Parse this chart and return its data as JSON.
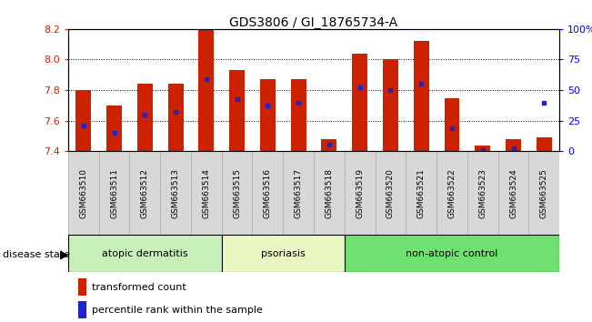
{
  "title": "GDS3806 / GI_18765734-A",
  "samples": [
    "GSM663510",
    "GSM663511",
    "GSM663512",
    "GSM663513",
    "GSM663514",
    "GSM663515",
    "GSM663516",
    "GSM663517",
    "GSM663518",
    "GSM663519",
    "GSM663520",
    "GSM663521",
    "GSM663522",
    "GSM663523",
    "GSM663524",
    "GSM663525"
  ],
  "bar_heights": [
    7.8,
    7.7,
    7.84,
    7.84,
    8.2,
    7.93,
    7.87,
    7.87,
    7.48,
    8.04,
    8.0,
    8.12,
    7.75,
    7.44,
    7.48,
    7.49
  ],
  "blue_dot_y": [
    7.57,
    7.52,
    7.64,
    7.66,
    7.87,
    7.74,
    7.7,
    7.72,
    7.443,
    7.82,
    7.8,
    7.84,
    7.55,
    7.41,
    7.42,
    7.72
  ],
  "ymin": 7.4,
  "ymax": 8.2,
  "yticks": [
    7.4,
    7.6,
    7.8,
    8.0,
    8.2
  ],
  "right_ytick_labels": [
    "0",
    "25",
    "50",
    "75",
    "100%"
  ],
  "bar_color": "#cc2200",
  "dot_color": "#2222cc",
  "groups": [
    {
      "label": "atopic dermatitis",
      "start": 0,
      "end": 5,
      "color": "#c8f0b8"
    },
    {
      "label": "psoriasis",
      "start": 5,
      "end": 9,
      "color": "#e8f8c0"
    },
    {
      "label": "non-atopic control",
      "start": 9,
      "end": 16,
      "color": "#70e070"
    }
  ],
  "disease_state_label": "disease state",
  "legend_items": [
    {
      "label": "transformed count",
      "color": "#cc2200"
    },
    {
      "label": "percentile rank within the sample",
      "color": "#2222cc"
    }
  ],
  "xtick_bg": "#d8d8d8"
}
